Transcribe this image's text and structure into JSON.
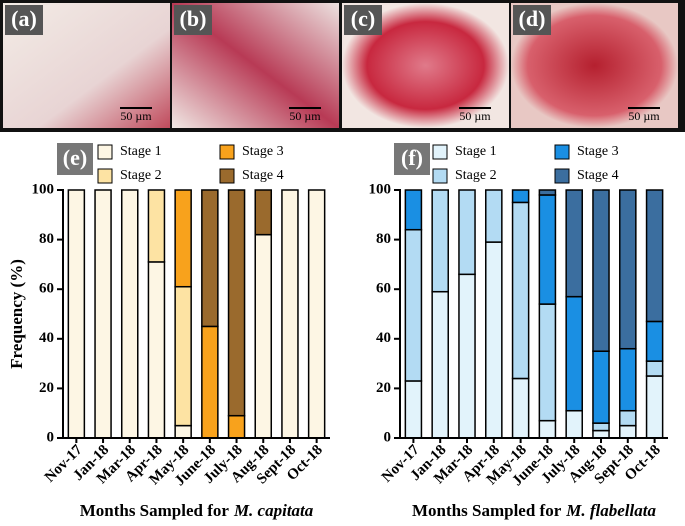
{
  "micrographs": [
    {
      "label": "(a)",
      "scale": "50 µm"
    },
    {
      "label": "(b)",
      "scale": "50 µm"
    },
    {
      "label": "(c)",
      "scale": "50 µm"
    },
    {
      "label": "(d)",
      "scale": "50 µm"
    }
  ],
  "y_label": "Frequency (%)",
  "chart_data": [
    {
      "type": "stacked_bar",
      "label": "(e)",
      "x_label": "Months Sampled for",
      "x_label_species": "M. capitata",
      "categories": [
        "Nov-17",
        "Jan-18",
        "Mar-18",
        "Apr-18",
        "May-18",
        "June-18",
        "July-18",
        "Aug-18",
        "Sept-18",
        "Oct-18"
      ],
      "series": [
        {
          "name": "Stage 1",
          "color": "#fdf6e4",
          "values": [
            100,
            100,
            100,
            71,
            5,
            0,
            0,
            82,
            100,
            100
          ]
        },
        {
          "name": "Stage 2",
          "color": "#fde3a3",
          "values": [
            0,
            0,
            0,
            29,
            56,
            0,
            0,
            0,
            0,
            0
          ]
        },
        {
          "name": "Stage 3",
          "color": "#f8a21c",
          "values": [
            0,
            0,
            0,
            0,
            39,
            45,
            9,
            0,
            0,
            0
          ]
        },
        {
          "name": "Stage 4",
          "color": "#9a6a2d",
          "values": [
            0,
            0,
            0,
            0,
            0,
            55,
            91,
            18,
            0,
            0
          ]
        }
      ],
      "ylim": [
        0,
        100
      ],
      "yticks": [
        0,
        20,
        40,
        60,
        80,
        100
      ]
    },
    {
      "type": "stacked_bar",
      "label": "(f)",
      "x_label": "Months Sampled for",
      "x_label_species": "M. flabellata",
      "categories": [
        "Nov-17",
        "Jan-18",
        "Mar-18",
        "Apr-18",
        "May-18",
        "June-18",
        "July-18",
        "Aug-18",
        "Sept-18",
        "Oct-18"
      ],
      "series": [
        {
          "name": "Stage 1",
          "color": "#e2f3fb",
          "values": [
            23,
            59,
            66,
            79,
            24,
            7,
            11,
            3,
            5,
            25
          ]
        },
        {
          "name": "Stage 2",
          "color": "#b3dbf3",
          "values": [
            61,
            41,
            34,
            21,
            71,
            47,
            0,
            3,
            6,
            6
          ]
        },
        {
          "name": "Stage 3",
          "color": "#1a8fe3",
          "values": [
            16,
            0,
            0,
            0,
            5,
            44,
            46,
            29,
            25,
            16
          ]
        },
        {
          "name": "Stage 4",
          "color": "#3b6e9f",
          "values": [
            0,
            0,
            0,
            0,
            0,
            2,
            43,
            65,
            64,
            53
          ]
        }
      ],
      "ylim": [
        0,
        100
      ],
      "yticks": [
        0,
        20,
        40,
        60,
        80,
        100
      ]
    }
  ]
}
